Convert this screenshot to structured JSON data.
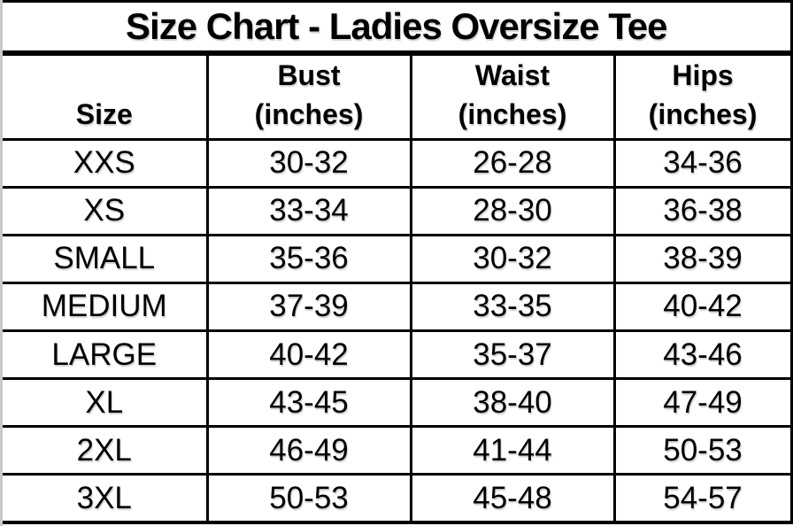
{
  "header": {
    "title": "Size Chart - Ladies Oversize Tee"
  },
  "chart_data": {
    "type": "table",
    "title": "Size Chart - Ladies Oversize Tee",
    "units": "inches",
    "columns": [
      {
        "label": "Size",
        "sub": ""
      },
      {
        "label": "Bust",
        "sub": "(inches)"
      },
      {
        "label": "Waist",
        "sub": "(inches)"
      },
      {
        "label": "Hips",
        "sub": "(inches)"
      }
    ],
    "rows": [
      [
        "XXS",
        "30-32",
        "26-28",
        "34-36"
      ],
      [
        "XS",
        "33-34",
        "28-30",
        "36-38"
      ],
      [
        "SMALL",
        "35-36",
        "30-32",
        "38-39"
      ],
      [
        "MEDIUM",
        "37-39",
        "33-35",
        "40-42"
      ],
      [
        "LARGE",
        "40-42",
        "35-37",
        "43-46"
      ],
      [
        "XL",
        "43-45",
        "38-40",
        "47-49"
      ],
      [
        "2XL",
        "46-49",
        "41-44",
        "50-53"
      ],
      [
        "3XL",
        "50-53",
        "45-48",
        "54-57"
      ]
    ],
    "layout": {
      "grid": "on",
      "border_color": "#000000",
      "background": "#ffffff",
      "text_color": "#000000",
      "left_edge_strip_color": "#c9c9c9"
    }
  }
}
